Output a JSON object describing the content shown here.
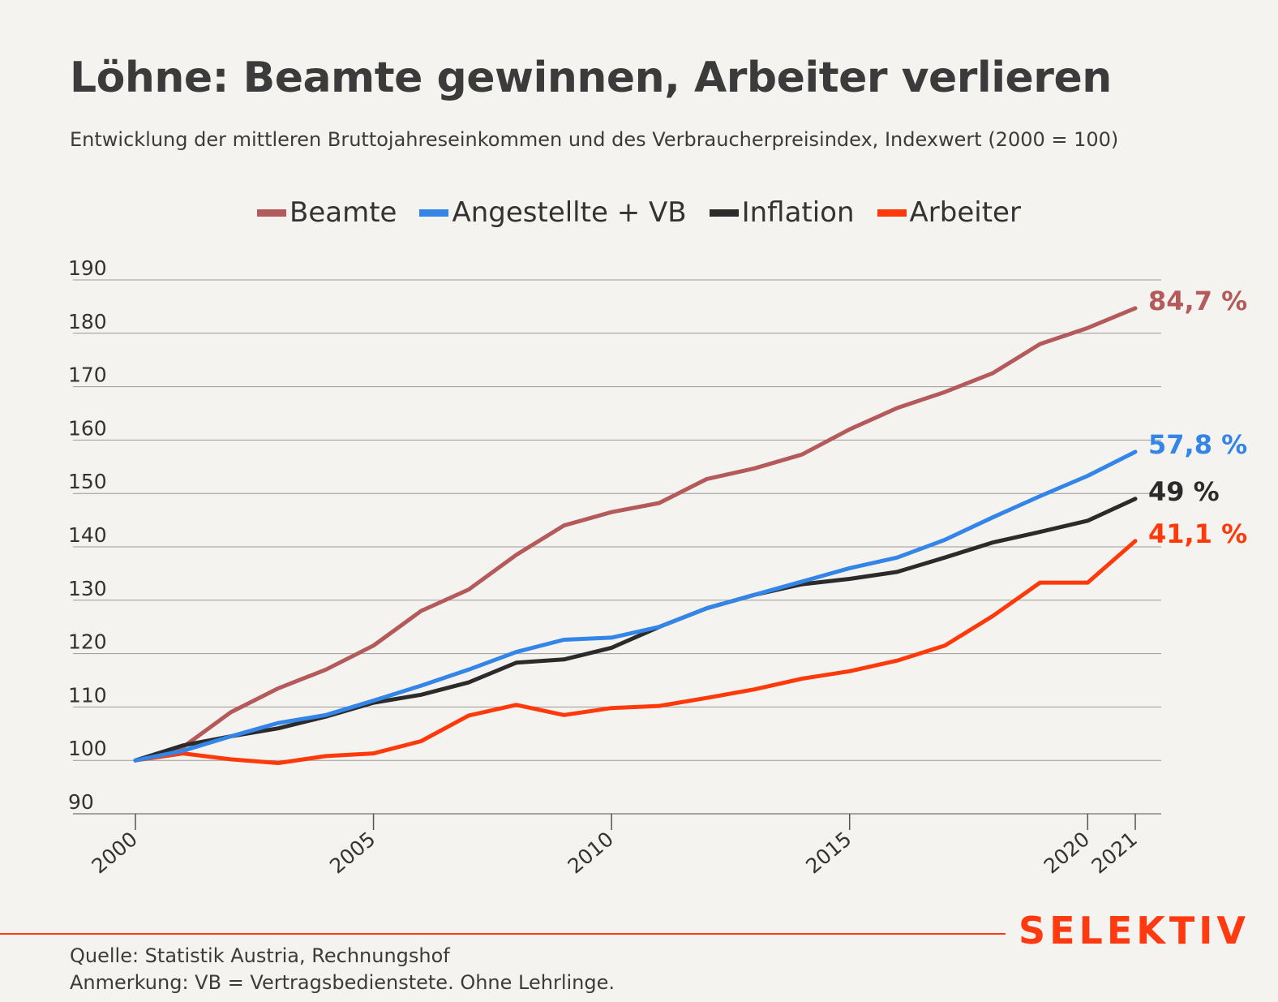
{
  "page": {
    "title": "Löhne: Beamte gewinnen, Arbeiter verlieren",
    "subtitle": "Entwicklung der mittleren Bruttojahreseinkommen und des Verbraucherpreisindex, Indexwert (2000 = 100)",
    "brand": "SELEKTIV",
    "source": "Quelle: Statistik Austria, Rechnungshof",
    "note": "Anmerkung: VB = Vertragsbedienstete. Ohne Lehrlinge."
  },
  "legend": [
    {
      "label": "Beamte",
      "color": "#b45a5a"
    },
    {
      "label": "Angestellte + VB",
      "color": "#3385e8"
    },
    {
      "label": "Inflation",
      "color": "#2b2b2b"
    },
    {
      "label": "Arbeiter",
      "color": "#ff3a0a"
    }
  ],
  "chart_data": {
    "type": "line",
    "ylim": [
      90,
      190
    ],
    "yticks": [
      90,
      100,
      110,
      120,
      130,
      140,
      150,
      160,
      170,
      180,
      190
    ],
    "xlim": [
      2000,
      2021
    ],
    "xticks": [
      2000,
      2005,
      2010,
      2015,
      2020,
      2021
    ],
    "grid": true,
    "legend_position": "top-center",
    "x": [
      2000,
      2001,
      2002,
      2003,
      2004,
      2005,
      2006,
      2007,
      2008,
      2009,
      2010,
      2011,
      2012,
      2013,
      2014,
      2015,
      2016,
      2017,
      2018,
      2019,
      2020,
      2021
    ],
    "series": [
      {
        "name": "Beamte",
        "color": "#b45a5a",
        "end_label": "84,7 %",
        "values": [
          100,
          102.5,
          109,
          113.5,
          117,
          121.5,
          128,
          132,
          138.5,
          144,
          146.5,
          148.2,
          152.7,
          154.7,
          157.3,
          162,
          166,
          169,
          172.5,
          178,
          181,
          184.7
        ]
      },
      {
        "name": "Angestellte + VB",
        "color": "#3385e8",
        "end_label": "57,8 %",
        "values": [
          100,
          101.8,
          104.5,
          107,
          108.5,
          111.2,
          114,
          117,
          120.3,
          122.6,
          123,
          125,
          128.5,
          131,
          133.5,
          136,
          138,
          141.3,
          145.5,
          149.5,
          153.3,
          157.8
        ]
      },
      {
        "name": "Inflation",
        "color": "#2b2b2b",
        "end_label": "49 %",
        "values": [
          100,
          102.8,
          104.5,
          106,
          108.2,
          110.8,
          112.3,
          114.6,
          118.3,
          118.9,
          121.1,
          125,
          128.5,
          131,
          133,
          134,
          135.3,
          138,
          140.8,
          142.8,
          144.9,
          149
        ]
      },
      {
        "name": "Arbeiter",
        "color": "#ff3a0a",
        "end_label": "41,1 %",
        "values": [
          100,
          101.3,
          100.2,
          99.5,
          100.8,
          101.3,
          103.6,
          108.4,
          110.4,
          108.5,
          109.8,
          110.2,
          111.7,
          113.3,
          115.3,
          116.7,
          118.7,
          121.5,
          127,
          133.3,
          133.3,
          141.1
        ]
      }
    ]
  }
}
